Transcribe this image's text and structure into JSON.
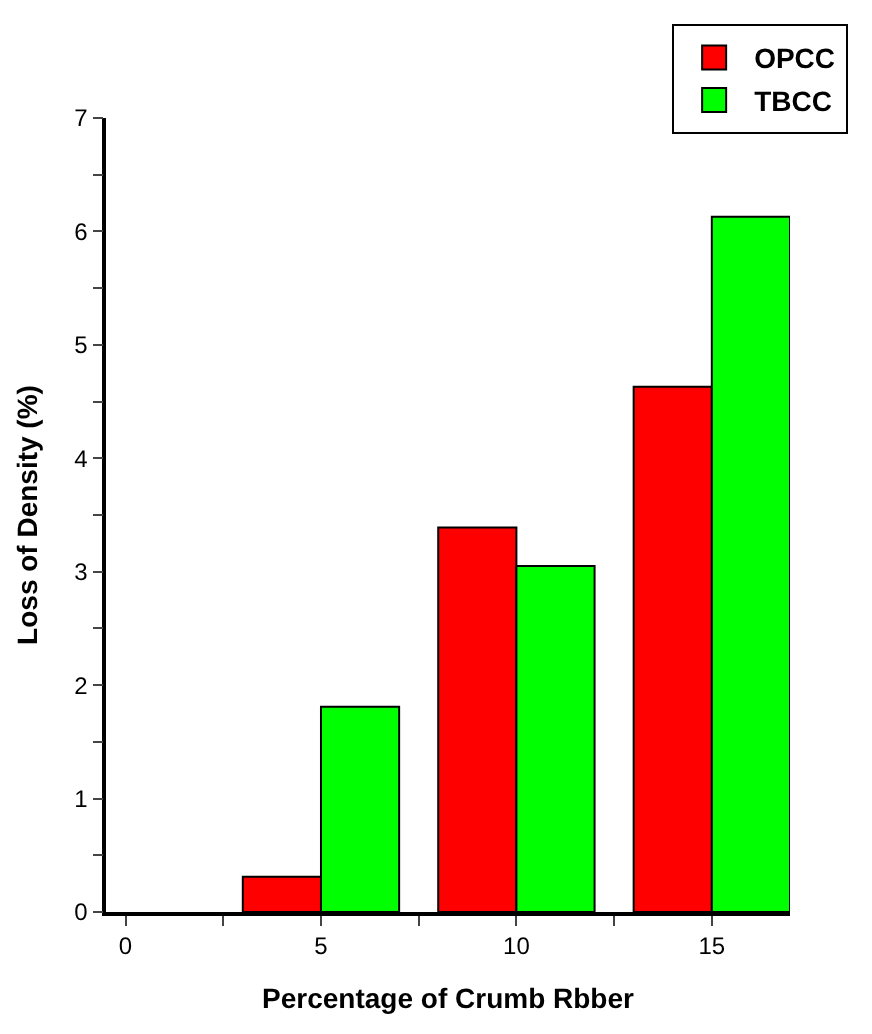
{
  "chart_data": {
    "type": "bar",
    "xlabel": "Percentage of Crumb Rbber",
    "ylabel": "Loss of Density (%)",
    "series": [
      {
        "name": "OPCC",
        "color": "#ff0000",
        "x": [
          4,
          9,
          14
        ],
        "values": [
          0.31,
          3.39,
          4.63
        ]
      },
      {
        "name": "TBCC",
        "color": "#00ff00",
        "x": [
          6,
          11,
          16
        ],
        "values": [
          1.81,
          3.05,
          6.13
        ]
      }
    ],
    "xlim": [
      -0.5,
      17
    ],
    "xticks": [
      0,
      {
        "value": 2.5,
        "label": null
      },
      5,
      {
        "value": 7.5,
        "label": null
      },
      10,
      {
        "value": 12.5,
        "label": null
      },
      15
    ],
    "ylim": [
      0,
      7
    ],
    "yticks": [
      0,
      {
        "value": 0.5,
        "label": null
      },
      1,
      {
        "value": 1.5,
        "label": null
      },
      2,
      {
        "value": 2.5,
        "label": null
      },
      3,
      {
        "value": 3.5,
        "label": null
      },
      4,
      {
        "value": 4.5,
        "label": null
      },
      5,
      {
        "value": 5.5,
        "label": null
      },
      6,
      {
        "value": 6.5,
        "label": null
      },
      7
    ],
    "legend": "top right"
  }
}
